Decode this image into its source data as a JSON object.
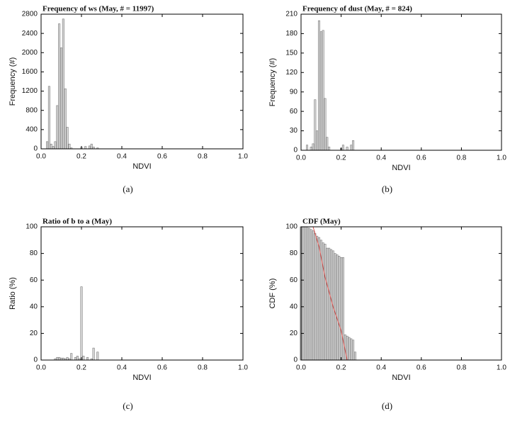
{
  "chart_data": [
    {
      "type": "bar",
      "title": "Frequency of ws (May, # = 11997)",
      "xlabel": "NDVI",
      "ylabel": "Frequency (#)",
      "caption": "(a)",
      "xlim": [
        0,
        1
      ],
      "xticks": [
        {
          "value": 0,
          "label": "0.0"
        },
        0.2,
        0.4,
        0.6,
        0.8,
        {
          "value": 1,
          "label": "1.0"
        }
      ],
      "ylim": [
        0,
        2800
      ],
      "yticks": [
        0,
        400,
        800,
        1200,
        1600,
        2000,
        2400,
        2800
      ],
      "series": [
        {
          "type": "bar",
          "color": "#d9d9d9",
          "x": [
            0.03,
            0.04,
            0.05,
            0.06,
            0.07,
            0.08,
            0.09,
            0.1,
            0.11,
            0.12,
            0.13,
            0.14,
            0.15,
            0.2,
            0.22,
            0.24,
            0.25,
            0.26,
            0.28
          ],
          "values": [
            150,
            1300,
            100,
            50,
            150,
            900,
            2600,
            2100,
            2700,
            1250,
            450,
            100,
            20,
            30,
            50,
            60,
            100,
            40,
            20
          ]
        }
      ]
    },
    {
      "type": "bar",
      "title": "Frequency of dust (May, # = 824)",
      "xlabel": "NDVI",
      "ylabel": "Frequency (#)",
      "caption": "(b)",
      "xlim": [
        0,
        1
      ],
      "xticks": [
        {
          "value": 0,
          "label": "0.0"
        },
        0.2,
        0.4,
        0.6,
        0.8,
        {
          "value": 1,
          "label": "1.0"
        }
      ],
      "ylim": [
        0,
        210
      ],
      "yticks": [
        0,
        30,
        60,
        90,
        120,
        150,
        180,
        210
      ],
      "series": [
        {
          "type": "bar",
          "color": "#d9d9d9",
          "x": [
            0.03,
            0.05,
            0.06,
            0.07,
            0.08,
            0.09,
            0.1,
            0.11,
            0.12,
            0.13,
            0.14,
            0.2,
            0.21,
            0.23,
            0.25,
            0.26
          ],
          "values": [
            8,
            5,
            10,
            78,
            30,
            200,
            183,
            185,
            80,
            20,
            5,
            3,
            8,
            5,
            8,
            15
          ]
        }
      ]
    },
    {
      "type": "bar",
      "title": "Ratio of b to a (May)",
      "xlabel": "NDVI",
      "ylabel": "Ratio (%)",
      "caption": "(c)",
      "xlim": [
        0,
        1
      ],
      "xticks": [
        {
          "value": 0,
          "label": "0.0"
        },
        0.2,
        0.4,
        0.6,
        0.8,
        {
          "value": 1,
          "label": "1.0"
        }
      ],
      "ylim": [
        0,
        100
      ],
      "yticks": [
        0,
        20,
        40,
        60,
        80,
        100
      ],
      "series": [
        {
          "type": "bar",
          "color": "#d9d9d9",
          "x": [
            0.07,
            0.08,
            0.09,
            0.1,
            0.11,
            0.12,
            0.13,
            0.14,
            0.15,
            0.17,
            0.18,
            0.19,
            0.2,
            0.21,
            0.23,
            0.25,
            0.26,
            0.28
          ],
          "values": [
            1,
            2,
            2,
            1.5,
            1.5,
            1,
            2,
            1,
            5,
            2,
            3,
            1,
            55,
            3,
            2,
            1,
            9,
            6
          ]
        }
      ]
    },
    {
      "type": "bar",
      "title": "CDF (May)",
      "xlabel": "NDVI",
      "ylabel": "CDF (%)",
      "caption": "(d)",
      "xlim": [
        0,
        1
      ],
      "xticks": [
        {
          "value": 0,
          "label": "0.0"
        },
        0.2,
        0.4,
        0.6,
        0.8,
        {
          "value": 1,
          "label": "1.0"
        }
      ],
      "ylim": [
        0,
        100
      ],
      "yticks": [
        0,
        20,
        40,
        60,
        80,
        100
      ],
      "series": [
        {
          "type": "bar",
          "color": "#d9d9d9",
          "x": [
            0.0,
            0.01,
            0.02,
            0.03,
            0.04,
            0.05,
            0.06,
            0.07,
            0.08,
            0.09,
            0.1,
            0.11,
            0.12,
            0.13,
            0.14,
            0.15,
            0.16,
            0.17,
            0.18,
            0.19,
            0.2,
            0.21,
            0.22,
            0.23,
            0.24,
            0.25,
            0.26,
            0.27
          ],
          "values": [
            100,
            100,
            100,
            100,
            99,
            98,
            97,
            95,
            93,
            92,
            90,
            88,
            87,
            84,
            84,
            83,
            82,
            80,
            79,
            78,
            77,
            77,
            19,
            18,
            17,
            16,
            15,
            6
          ]
        },
        {
          "type": "line",
          "color": "#d9534f",
          "x": [
            0.06,
            0.09,
            0.12,
            0.16,
            0.2,
            0.23,
            0.3,
            1.0
          ],
          "values": [
            100,
            85,
            62,
            40,
            22,
            0,
            0,
            0
          ]
        }
      ]
    }
  ]
}
